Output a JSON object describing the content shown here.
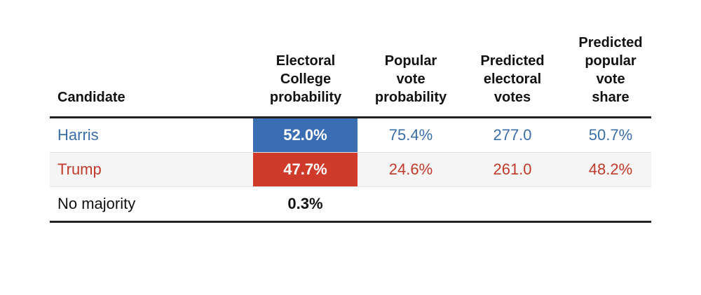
{
  "headers": {
    "candidate": "Candidate",
    "ec_prob": [
      "Electoral",
      "College",
      "probability"
    ],
    "pv_prob": [
      "Popular",
      "vote",
      "probability"
    ],
    "pred_ev": [
      "Predicted",
      "electoral",
      "votes"
    ],
    "pred_vs": [
      "Predicted",
      "popular",
      "vote",
      "share"
    ]
  },
  "rows": [
    {
      "candidate": "Harris",
      "ec_prob": "52.0%",
      "pv_prob": "75.4%",
      "pred_ev": "277.0",
      "pred_vs": "50.7%"
    },
    {
      "candidate": "Trump",
      "ec_prob": "47.7%",
      "pv_prob": "24.6%",
      "pred_ev": "261.0",
      "pred_vs": "48.2%"
    },
    {
      "candidate": "No majority",
      "ec_prob": "0.3%"
    }
  ],
  "colors": {
    "harris_fill": "#3b6db3",
    "harris_text": "#3a6ea8",
    "trump_fill": "#cf3a2b",
    "trump_text": "#c0392b",
    "rule": "#222222"
  }
}
